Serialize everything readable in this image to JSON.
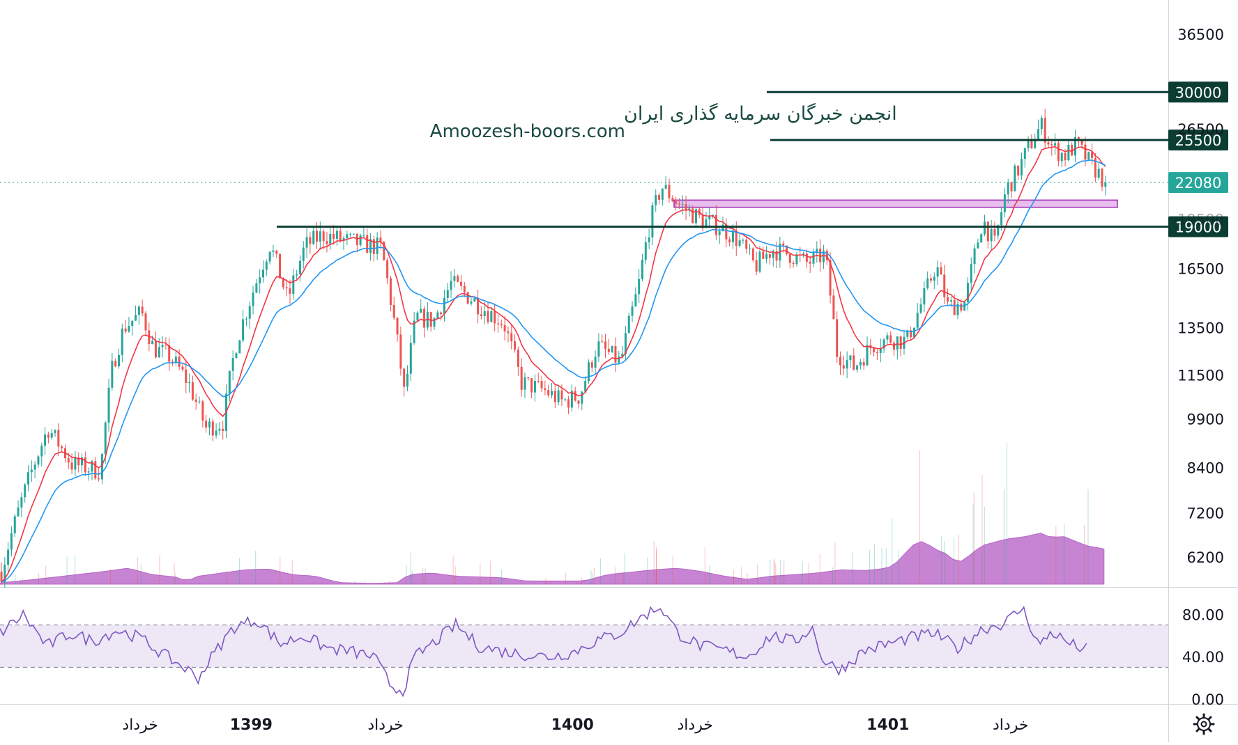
{
  "watermark": {
    "line1": "انجمن خبرگان سرمایه گذاری ایران",
    "line2": "Amoozesh-boors.com"
  },
  "colors": {
    "up": "#26a69a",
    "down": "#ef5350",
    "ema_fast": "#f23645",
    "ema_slow": "#2196f3",
    "level": "#0b3d33",
    "zone": "#c96fd6",
    "volume_ma": "#b865c7",
    "rsi_line": "#7e57c2",
    "rsi_band": "#ede7f6",
    "last_price": "#26a69a"
  },
  "chart_data": [
    {
      "type": "candlestick",
      "scale": "log",
      "y_ticks": [
        36500,
        26500,
        19500,
        16500,
        13500,
        11500,
        9900,
        8400,
        7200,
        6200
      ],
      "x_labels": [
        {
          "text": "خرداد",
          "bold": false,
          "at": 0.12
        },
        {
          "text": "1399",
          "bold": true,
          "at": 0.215
        },
        {
          "text": "خرداد",
          "bold": false,
          "at": 0.33
        },
        {
          "text": "1400",
          "bold": true,
          "at": 0.49
        },
        {
          "text": "خرداد",
          "bold": false,
          "at": 0.595
        },
        {
          "text": "1401",
          "bold": true,
          "at": 0.76
        },
        {
          "text": "خرداد",
          "bold": false,
          "at": 0.865
        }
      ],
      "price_path": [
        [
          0.0,
          5900
        ],
        [
          0.04,
          9600
        ],
        [
          0.06,
          8500
        ],
        [
          0.085,
          8300
        ],
        [
          0.095,
          11800
        ],
        [
          0.105,
          13500
        ],
        [
          0.12,
          14200
        ],
        [
          0.13,
          12600
        ],
        [
          0.145,
          12200
        ],
        [
          0.16,
          11200
        ],
        [
          0.175,
          9600
        ],
        [
          0.19,
          9800
        ],
        [
          0.2,
          12600
        ],
        [
          0.215,
          15200
        ],
        [
          0.23,
          17900
        ],
        [
          0.245,
          14800
        ],
        [
          0.26,
          17800
        ],
        [
          0.275,
          18500
        ],
        [
          0.285,
          18300
        ],
        [
          0.3,
          18050
        ],
        [
          0.325,
          17700
        ],
        [
          0.345,
          10700
        ],
        [
          0.355,
          14000
        ],
        [
          0.37,
          13800
        ],
        [
          0.385,
          15700
        ],
        [
          0.4,
          15000
        ],
        [
          0.415,
          14300
        ],
        [
          0.43,
          13700
        ],
        [
          0.445,
          11200
        ],
        [
          0.465,
          10900
        ],
        [
          0.48,
          10500
        ],
        [
          0.495,
          10700
        ],
        [
          0.51,
          12700
        ],
        [
          0.53,
          12000
        ],
        [
          0.545,
          15400
        ],
        [
          0.555,
          19200
        ],
        [
          0.565,
          21800
        ],
        [
          0.58,
          20500
        ],
        [
          0.6,
          19400
        ],
        [
          0.615,
          19000
        ],
        [
          0.63,
          18200
        ],
        [
          0.645,
          16600
        ],
        [
          0.66,
          17600
        ],
        [
          0.675,
          17300
        ],
        [
          0.69,
          16800
        ],
        [
          0.705,
          17300
        ],
        [
          0.715,
          12400
        ],
        [
          0.73,
          11800
        ],
        [
          0.745,
          12700
        ],
        [
          0.76,
          13000
        ],
        [
          0.775,
          12900
        ],
        [
          0.79,
          15000
        ],
        [
          0.8,
          16700
        ],
        [
          0.81,
          14500
        ],
        [
          0.825,
          14700
        ],
        [
          0.84,
          19500
        ],
        [
          0.85,
          17800
        ],
        [
          0.86,
          21500
        ],
        [
          0.87,
          23000
        ],
        [
          0.88,
          25000
        ],
        [
          0.89,
          26800
        ],
        [
          0.9,
          24800
        ],
        [
          0.91,
          24200
        ],
        [
          0.92,
          25100
        ],
        [
          0.93,
          23800
        ],
        [
          0.945,
          22080
        ]
      ],
      "levels": [
        {
          "price": 30000,
          "label": "30000"
        },
        {
          "price": 25500,
          "label": "25500"
        },
        {
          "price": 19000,
          "label": "19000"
        }
      ],
      "support_zone": {
        "low": 20300,
        "high": 20800
      },
      "last_price": {
        "value": 22080,
        "label": "22080"
      }
    },
    {
      "type": "line",
      "name": "RSI",
      "y_ticks": [
        "80.00",
        "40.00",
        "0.00"
      ],
      "band": [
        30,
        70
      ],
      "ylim": [
        0,
        100
      ],
      "path": [
        [
          0.0,
          62
        ],
        [
          0.02,
          80
        ],
        [
          0.04,
          50
        ],
        [
          0.06,
          62
        ],
        [
          0.08,
          55
        ],
        [
          0.1,
          65
        ],
        [
          0.12,
          58
        ],
        [
          0.14,
          42
        ],
        [
          0.16,
          28
        ],
        [
          0.17,
          20
        ],
        [
          0.18,
          38
        ],
        [
          0.2,
          68
        ],
        [
          0.22,
          75
        ],
        [
          0.24,
          52
        ],
        [
          0.26,
          60
        ],
        [
          0.28,
          48
        ],
        [
          0.3,
          45
        ],
        [
          0.32,
          40
        ],
        [
          0.335,
          12
        ],
        [
          0.345,
          8
        ],
        [
          0.355,
          40
        ],
        [
          0.37,
          52
        ],
        [
          0.39,
          70
        ],
        [
          0.41,
          50
        ],
        [
          0.43,
          45
        ],
        [
          0.45,
          42
        ],
        [
          0.47,
          40
        ],
        [
          0.49,
          44
        ],
        [
          0.51,
          55
        ],
        [
          0.53,
          62
        ],
        [
          0.55,
          78
        ],
        [
          0.565,
          88
        ],
        [
          0.58,
          62
        ],
        [
          0.6,
          50
        ],
        [
          0.62,
          46
        ],
        [
          0.64,
          40
        ],
        [
          0.66,
          60
        ],
        [
          0.68,
          54
        ],
        [
          0.695,
          68
        ],
        [
          0.705,
          35
        ],
        [
          0.72,
          28
        ],
        [
          0.74,
          46
        ],
        [
          0.76,
          52
        ],
        [
          0.78,
          58
        ],
        [
          0.8,
          62
        ],
        [
          0.82,
          48
        ],
        [
          0.84,
          66
        ],
        [
          0.86,
          72
        ],
        [
          0.875,
          86
        ],
        [
          0.89,
          50
        ],
        [
          0.9,
          64
        ],
        [
          0.91,
          56
        ],
        [
          0.92,
          50
        ],
        [
          0.93,
          47
        ]
      ]
    },
    {
      "type": "bar",
      "name": "Volume",
      "profile": [
        [
          0.0,
          0.08
        ],
        [
          0.03,
          0.3
        ],
        [
          0.06,
          0.55
        ],
        [
          0.09,
          0.8
        ],
        [
          0.11,
          1.0
        ],
        [
          0.13,
          0.6
        ],
        [
          0.15,
          0.45
        ],
        [
          0.16,
          0.2
        ],
        [
          0.17,
          0.5
        ],
        [
          0.19,
          0.7
        ],
        [
          0.21,
          0.9
        ],
        [
          0.23,
          0.95
        ],
        [
          0.25,
          0.6
        ],
        [
          0.27,
          0.5
        ],
        [
          0.29,
          0.1
        ],
        [
          0.32,
          0.05
        ],
        [
          0.34,
          0.1
        ],
        [
          0.35,
          0.6
        ],
        [
          0.37,
          0.7
        ],
        [
          0.39,
          0.5
        ],
        [
          0.41,
          0.45
        ],
        [
          0.43,
          0.4
        ],
        [
          0.45,
          0.2
        ],
        [
          0.5,
          0.2
        ],
        [
          0.52,
          0.6
        ],
        [
          0.54,
          0.75
        ],
        [
          0.56,
          0.9
        ],
        [
          0.58,
          1.0
        ],
        [
          0.6,
          0.8
        ],
        [
          0.62,
          0.5
        ],
        [
          0.64,
          0.3
        ],
        [
          0.66,
          0.5
        ],
        [
          0.68,
          0.6
        ],
        [
          0.7,
          0.7
        ],
        [
          0.72,
          0.9
        ],
        [
          0.74,
          0.85
        ],
        [
          0.76,
          1.0
        ],
        [
          0.77,
          1.5
        ],
        [
          0.78,
          2.4
        ],
        [
          0.79,
          2.7
        ],
        [
          0.8,
          2.2
        ],
        [
          0.81,
          1.9
        ],
        [
          0.82,
          1.3
        ],
        [
          0.83,
          1.8
        ],
        [
          0.84,
          2.4
        ],
        [
          0.85,
          2.6
        ],
        [
          0.86,
          2.8
        ],
        [
          0.87,
          2.9
        ],
        [
          0.88,
          3.0
        ],
        [
          0.89,
          3.2
        ],
        [
          0.9,
          2.9
        ],
        [
          0.91,
          3.0
        ],
        [
          0.92,
          2.7
        ],
        [
          0.93,
          2.4
        ],
        [
          0.945,
          2.2
        ]
      ]
    }
  ]
}
